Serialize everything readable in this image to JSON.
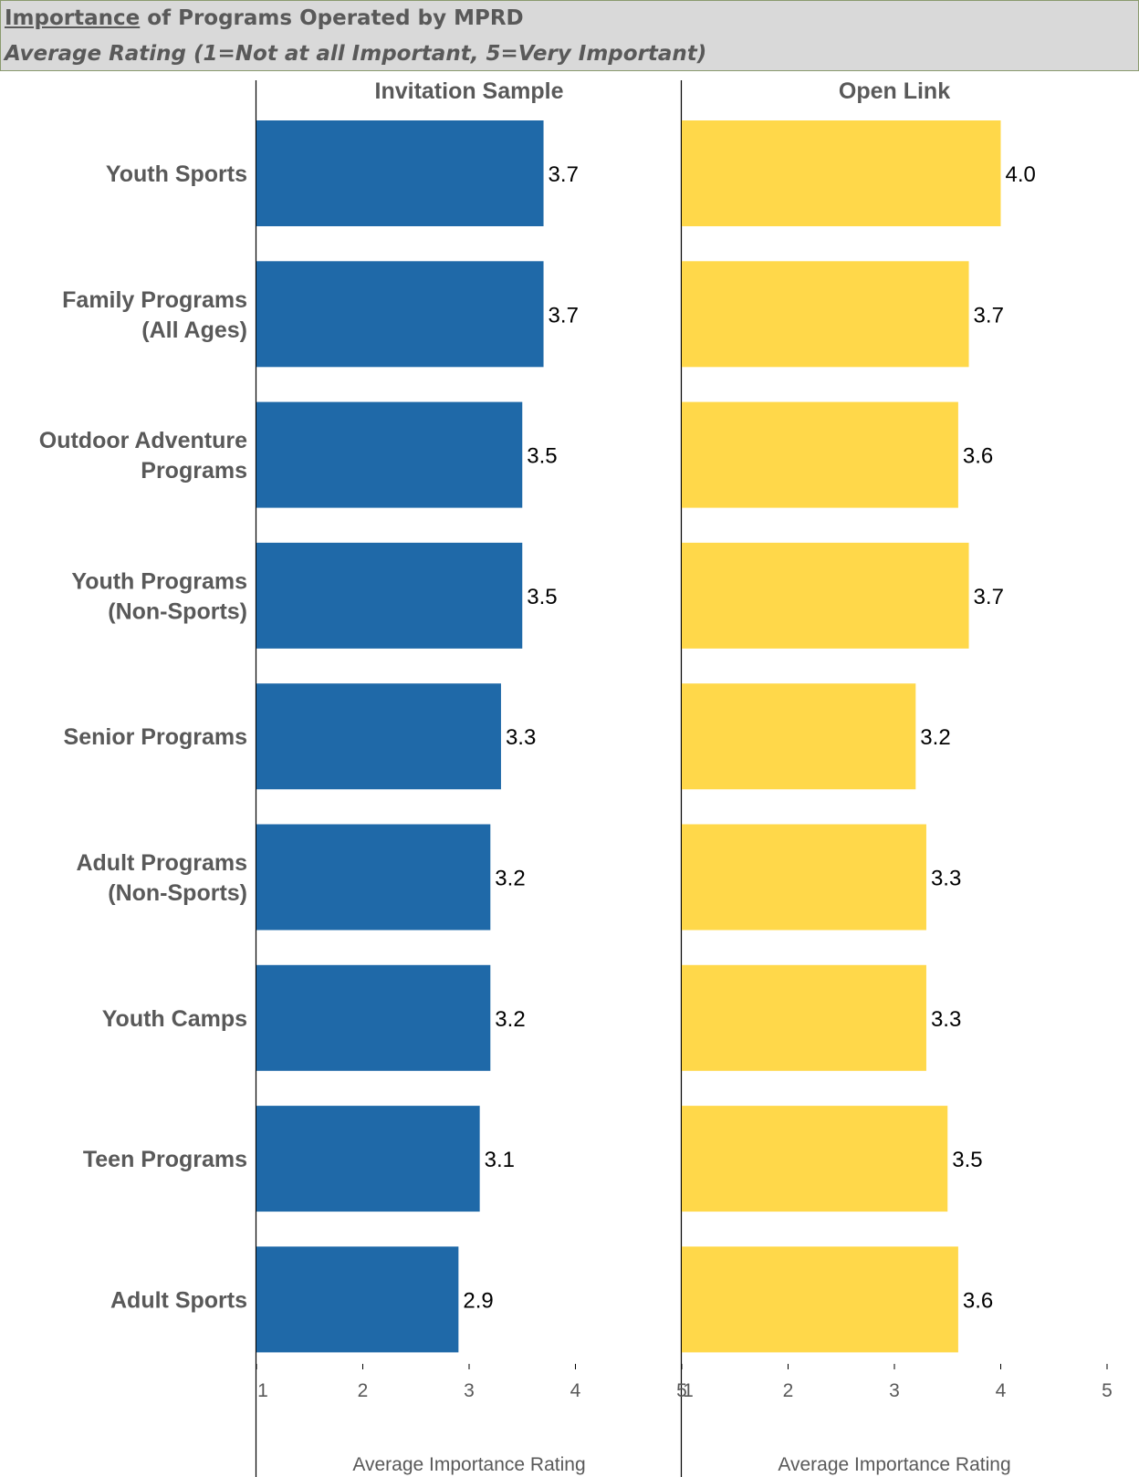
{
  "header": {
    "title_highlight": "Importance",
    "title_rest": " of Programs Operated by MPRD",
    "subtitle": "Average Rating (1=Not at all Important, 5=Very Important)"
  },
  "colors": {
    "invitation": "#1f69a8",
    "open_link": "#ffd84a",
    "header_bg": "#d9d9d9",
    "label_text": "#595959"
  },
  "chart_data": {
    "type": "bar",
    "orientation": "horizontal",
    "categories": [
      "Youth Sports",
      "Family Programs (All Ages)",
      "Outdoor Adventure Programs",
      "Youth Programs (Non-Sports)",
      "Senior Programs",
      "Adult Programs (Non-Sports)",
      "Youth Camps",
      "Teen Programs",
      "Adult Sports"
    ],
    "category_lines": [
      [
        "Youth Sports"
      ],
      [
        "Family Programs",
        "(All Ages)"
      ],
      [
        "Outdoor Adventure",
        "Programs"
      ],
      [
        "Youth Programs",
        "(Non-Sports)"
      ],
      [
        "Senior Programs"
      ],
      [
        "Adult Programs",
        "(Non-Sports)"
      ],
      [
        "Youth Camps"
      ],
      [
        "Teen Programs"
      ],
      [
        "Adult Sports"
      ]
    ],
    "panels": [
      {
        "name": "Invitation Sample",
        "values": [
          3.7,
          3.7,
          3.5,
          3.5,
          3.3,
          3.2,
          3.2,
          3.1,
          2.9
        ],
        "labels": [
          "3.7",
          "3.7",
          "3.5",
          "3.5",
          "3.3",
          "3.2",
          "3.2",
          "3.1",
          "2.9"
        ]
      },
      {
        "name": "Open Link",
        "values": [
          4.0,
          3.7,
          3.6,
          3.7,
          3.2,
          3.3,
          3.3,
          3.5,
          3.6
        ],
        "labels": [
          "4.0",
          "3.7",
          "3.6",
          "3.7",
          "3.2",
          "3.3",
          "3.3",
          "3.5",
          "3.6"
        ]
      }
    ],
    "xlabel": "Average Importance Rating",
    "xlim": [
      1,
      5
    ],
    "xticks": [
      1,
      2,
      3,
      4,
      5
    ],
    "xtick_labels": [
      "1",
      "2",
      "3",
      "4",
      "5"
    ],
    "grid": false,
    "legend": "none"
  }
}
